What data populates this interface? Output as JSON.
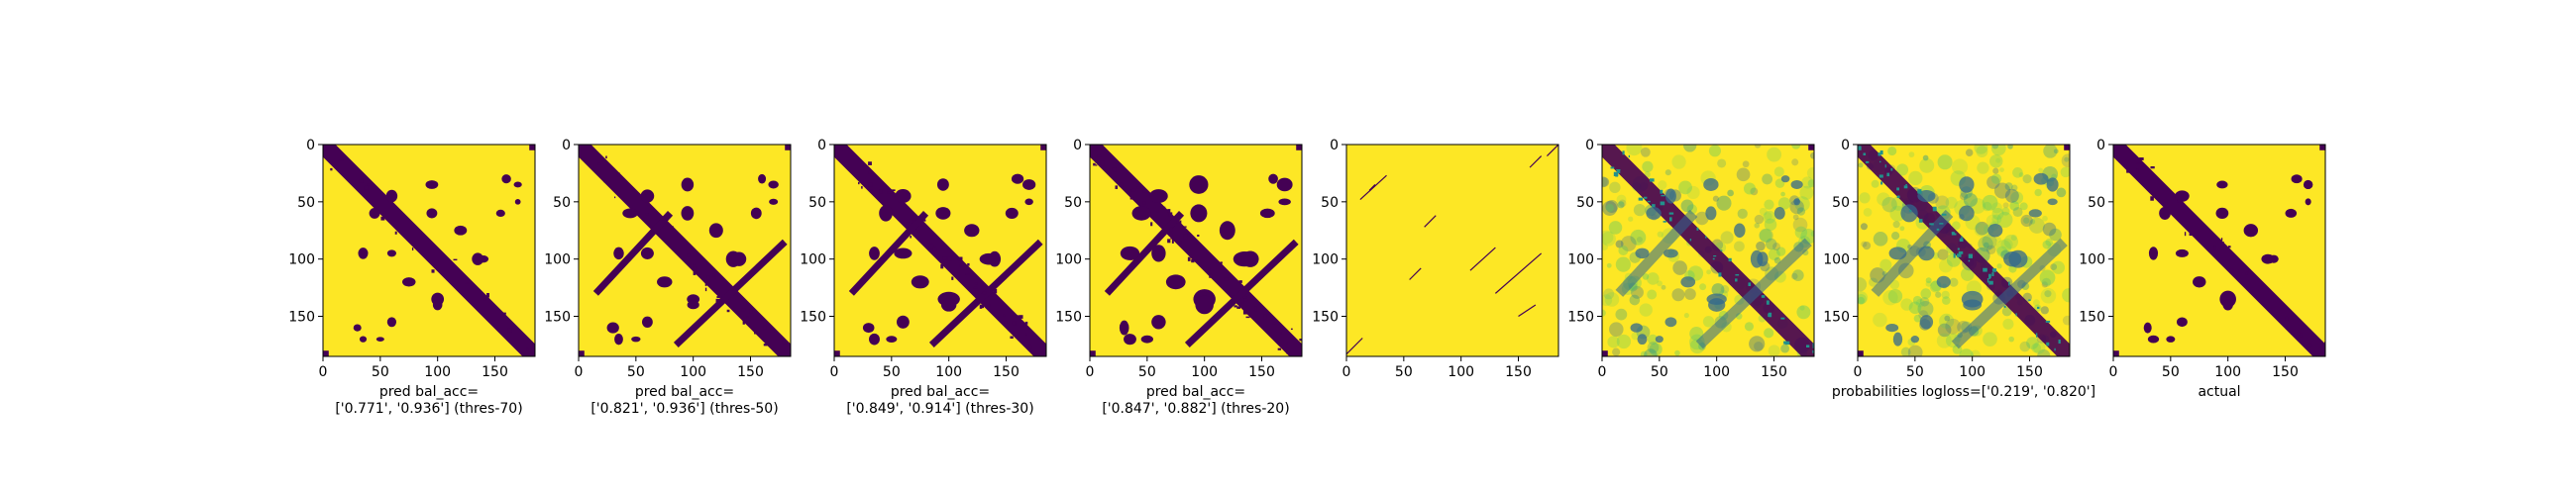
{
  "colors": {
    "background": "#fde725",
    "contact": "#440154",
    "mid_dark": "#31688e",
    "mid": "#21918c",
    "mid_light": "#5ec962",
    "axis": "#000000"
  },
  "chart_data": [
    {
      "type": "heatmap",
      "matrix_size": 185,
      "xticks": [
        0,
        50,
        100,
        150
      ],
      "yticks": [
        0,
        50,
        100,
        150
      ],
      "xlim": [
        0,
        185
      ],
      "ylim": [
        185,
        0
      ],
      "xlabel_lines": [
        "pred bal_acc=",
        "['0.771', '0.936'] (thres-70)"
      ],
      "style": "binary",
      "density": 0.35
    },
    {
      "type": "heatmap",
      "matrix_size": 185,
      "xticks": [
        0,
        50,
        100,
        150
      ],
      "yticks": [
        0,
        50,
        100,
        150
      ],
      "xlim": [
        0,
        185
      ],
      "ylim": [
        185,
        0
      ],
      "xlabel_lines": [
        "pred bal_acc=",
        "['0.821', '0.936'] (thres-50)"
      ],
      "style": "binary",
      "density": 0.55
    },
    {
      "type": "heatmap",
      "matrix_size": 185,
      "xticks": [
        0,
        50,
        100,
        150
      ],
      "yticks": [
        0,
        50,
        100,
        150
      ],
      "xlim": [
        0,
        185
      ],
      "ylim": [
        185,
        0
      ],
      "xlabel_lines": [
        "pred bal_acc=",
        "['0.849', '0.914'] (thres-30)"
      ],
      "style": "binary",
      "density": 0.8
    },
    {
      "type": "heatmap",
      "matrix_size": 185,
      "xticks": [
        0,
        50,
        100,
        150
      ],
      "yticks": [
        0,
        50,
        100,
        150
      ],
      "xlim": [
        0,
        185
      ],
      "ylim": [
        185,
        0
      ],
      "xlabel_lines": [
        "pred bal_acc=",
        "['0.847', '0.882'] (thres-20)"
      ],
      "style": "binary",
      "density": 1.0
    },
    {
      "type": "heatmap",
      "matrix_size": 185,
      "xticks": [
        0,
        50,
        100,
        150
      ],
      "yticks": [
        0,
        50,
        100,
        150
      ],
      "xlim": [
        0,
        185
      ],
      "ylim": [
        185,
        0
      ],
      "xlabel_lines": [],
      "style": "sparse_lines",
      "density": 0.1
    },
    {
      "type": "heatmap",
      "matrix_size": 185,
      "xticks": [
        0,
        50,
        100,
        150
      ],
      "yticks": [
        0,
        50,
        100,
        150
      ],
      "xlim": [
        0,
        185
      ],
      "ylim": [
        185,
        0
      ],
      "xlabel_lines": [],
      "style": "probability",
      "density": 0.7
    },
    {
      "type": "heatmap",
      "matrix_size": 185,
      "xticks": [
        0,
        50,
        100,
        150
      ],
      "yticks": [
        0,
        50,
        100,
        150
      ],
      "xlim": [
        0,
        185
      ],
      "ylim": [
        185,
        0
      ],
      "xlabel_lines": [
        "probabilities logloss=['0.219', '0.820']"
      ],
      "style": "probability",
      "density": 0.9
    },
    {
      "type": "heatmap",
      "matrix_size": 185,
      "xticks": [
        0,
        50,
        100,
        150
      ],
      "yticks": [
        0,
        50,
        100,
        150
      ],
      "xlim": [
        0,
        185
      ],
      "ylim": [
        185,
        0
      ],
      "xlabel_lines": [
        "actual"
      ],
      "style": "binary",
      "density": 0.5
    }
  ]
}
